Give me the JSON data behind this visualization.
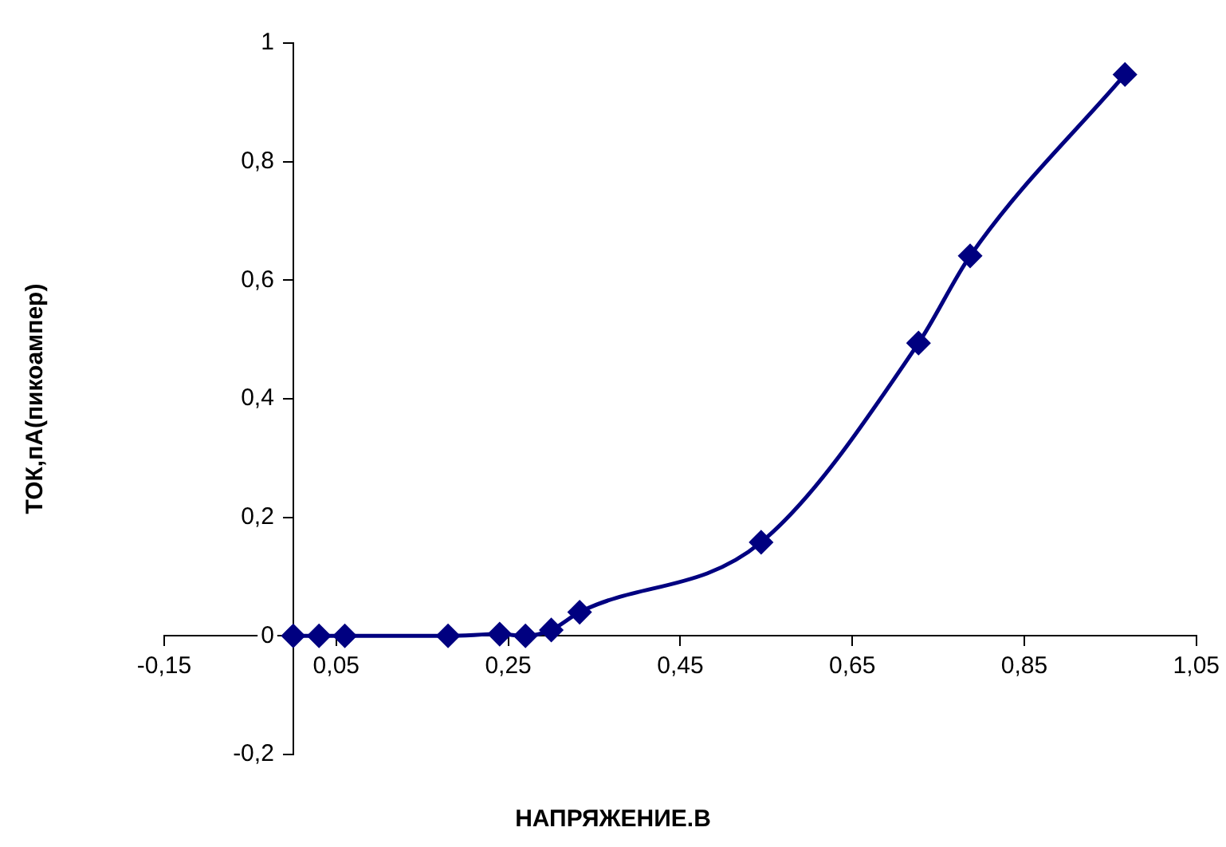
{
  "chart_data": {
    "type": "line",
    "xlabel": "НАПРЯЖЕНИЕ.В",
    "ylabel": "ТОК,пА(пикоампер)",
    "x": [
      0,
      0.03,
      0.06,
      0.18,
      0.24,
      0.27,
      0.3,
      0.333,
      0.544,
      0.727,
      0.787,
      0.967
    ],
    "series": [
      {
        "color": "#000080",
        "values": [
          0,
          0,
          0,
          0,
          0.003,
          0,
          0.01,
          0.04,
          0.158,
          0.494,
          0.641,
          0.947
        ]
      }
    ],
    "xlim": [
      -0.15,
      1.05
    ],
    "xticks": [
      {
        "value": -0.15,
        "label": "-0,15"
      },
      {
        "value": 0.05,
        "label": "0,05"
      },
      {
        "value": 0.25,
        "label": "0,25"
      },
      {
        "value": 0.45,
        "label": "0,45"
      },
      {
        "value": 0.65,
        "label": "0,65"
      },
      {
        "value": 0.85,
        "label": "0,85"
      },
      {
        "value": 1.05,
        "label": "1,05"
      }
    ],
    "ylim": [
      -0.2,
      1
    ],
    "yticks": [
      {
        "value": -0.2,
        "label": "-0,2"
      },
      0,
      {
        "value": 0.2,
        "label": "0,2"
      },
      {
        "value": 0.4,
        "label": "0,4"
      },
      {
        "value": 0.6,
        "label": "0,6"
      },
      {
        "value": 0.8,
        "label": "0,8"
      },
      1
    ],
    "grid": false,
    "legend": false,
    "marker": "diamond",
    "line_style": "solid"
  }
}
